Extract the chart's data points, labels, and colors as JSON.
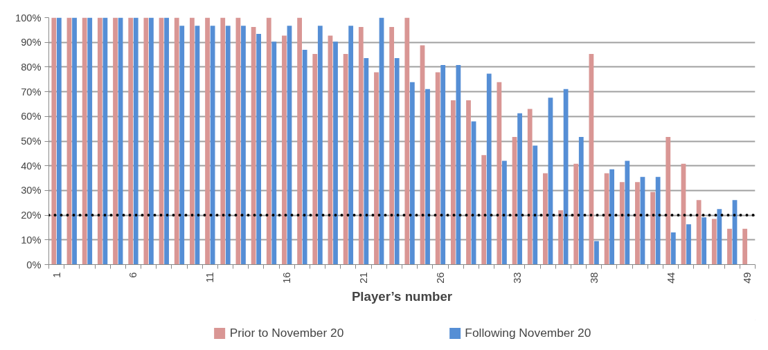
{
  "chart_data": {
    "type": "bar",
    "xlabel": "Player’s number",
    "categories": [
      "1",
      null,
      null,
      null,
      null,
      "6",
      null,
      null,
      null,
      null,
      "11",
      null,
      null,
      null,
      null,
      "16",
      null,
      null,
      null,
      null,
      "21",
      null,
      null,
      null,
      null,
      "26",
      null,
      null,
      null,
      null,
      "33",
      null,
      null,
      null,
      null,
      "38",
      null,
      null,
      null,
      null,
      "44",
      null,
      null,
      null,
      null,
      "49"
    ],
    "series": [
      {
        "name": "Prior to November 20",
        "color": "#d99694",
        "values": [
          100,
          100,
          100,
          100,
          100,
          100,
          100,
          100,
          100,
          100,
          100,
          100,
          100,
          96.2,
          100,
          92.7,
          100,
          85.3,
          92.7,
          85.3,
          96.2,
          77.9,
          96.2,
          100,
          88.8,
          77.9,
          66.5,
          66.5,
          44.3,
          73.9,
          51.7,
          63.0,
          37.0,
          22.0,
          40.8,
          85.3,
          37.0,
          33.4,
          33.4,
          29.4,
          51.7,
          40.8,
          26.1,
          18.5,
          14.5,
          14.5
        ]
      },
      {
        "name": "Following November 20",
        "color": "#558ed5",
        "values": [
          100,
          100,
          100,
          100,
          100,
          100,
          100,
          100,
          96.7,
          96.7,
          96.7,
          96.7,
          96.7,
          93.4,
          90.3,
          96.7,
          87.0,
          96.7,
          90.3,
          96.7,
          83.6,
          100,
          83.6,
          73.9,
          71.1,
          80.8,
          80.8,
          58.0,
          77.3,
          42.0,
          61.3,
          48.2,
          67.6,
          71.1,
          51.7,
          9.5,
          38.6,
          42.0,
          35.5,
          35.5,
          13.0,
          16.3,
          19.1,
          22.5,
          26.1,
          null
        ]
      }
    ],
    "ylim": [
      0,
      100
    ],
    "yticks": [
      {
        "value": 0,
        "label": "0%"
      },
      {
        "value": 10,
        "label": "10%"
      },
      {
        "value": 20,
        "label": "20%"
      },
      {
        "value": 30,
        "label": "30%"
      },
      {
        "value": 40,
        "label": "40%"
      },
      {
        "value": 50,
        "label": "50%"
      },
      {
        "value": 60,
        "label": "60%"
      },
      {
        "value": 70,
        "label": "70%"
      },
      {
        "value": 80,
        "label": "80%"
      },
      {
        "value": 90,
        "label": "90%"
      },
      {
        "value": 100,
        "label": "100%"
      }
    ],
    "ref_lines": [
      {
        "axis": "y",
        "value": 20,
        "color": "#000000",
        "line_style": "dotted"
      }
    ],
    "grid": "y",
    "legend": "bottom"
  }
}
